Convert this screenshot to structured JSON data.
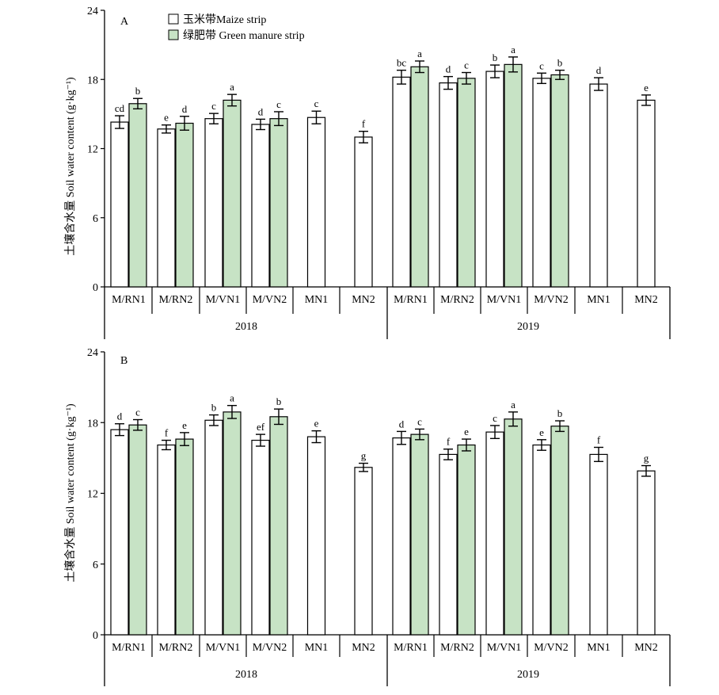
{
  "legend": {
    "maize_label": "玉米带Maize strip",
    "green_label": "绿肥带 Green manure strip"
  },
  "colors": {
    "maize_fill": "#ffffff",
    "green_fill": "#c7e3c5",
    "stroke": "#000000"
  },
  "ylabel": "土壤含水量 Soil water content (g·kg⁻¹)",
  "chart_data": [
    {
      "type": "bar",
      "panel_label": "A",
      "ylim": [
        0,
        24
      ],
      "yticks": [
        0,
        6,
        12,
        18,
        24
      ],
      "years": [
        "2018",
        "2019"
      ],
      "categories": [
        "M/RN1",
        "M/RN2",
        "M/VN1",
        "M/VN2",
        "MN1",
        "MN2"
      ],
      "series": [
        {
          "name": "玉米带Maize strip",
          "values": {
            "2018": [
              14.3,
              13.7,
              14.6,
              14.1,
              14.7,
              13.0
            ],
            "2019": [
              18.2,
              17.7,
              18.7,
              18.1,
              17.6,
              16.2
            ]
          },
          "errors": {
            "2018": [
              0.55,
              0.35,
              0.45,
              0.45,
              0.55,
              0.5
            ],
            "2019": [
              0.6,
              0.55,
              0.55,
              0.45,
              0.55,
              0.45
            ]
          },
          "letters": {
            "2018": [
              "cd",
              "e",
              "c",
              "d",
              "c",
              "f"
            ],
            "2019": [
              "bc",
              "d",
              "b",
              "c",
              "d",
              "e"
            ]
          }
        },
        {
          "name": "绿肥带 Green manure strip",
          "values": {
            "2018": [
              15.9,
              14.2,
              16.2,
              14.6,
              null,
              null
            ],
            "2019": [
              19.1,
              18.1,
              19.3,
              18.4,
              null,
              null
            ]
          },
          "errors": {
            "2018": [
              0.45,
              0.6,
              0.5,
              0.6,
              null,
              null
            ],
            "2019": [
              0.5,
              0.5,
              0.65,
              0.4,
              null,
              null
            ]
          },
          "letters": {
            "2018": [
              "b",
              "d",
              "a",
              "c",
              null,
              null
            ],
            "2019": [
              "a",
              "c",
              "a",
              "b",
              null,
              null
            ]
          }
        }
      ]
    },
    {
      "type": "bar",
      "panel_label": "B",
      "ylim": [
        0,
        24
      ],
      "yticks": [
        0,
        6,
        12,
        18,
        24
      ],
      "years": [
        "2018",
        "2019"
      ],
      "categories": [
        "M/RN1",
        "M/RN2",
        "M/VN1",
        "M/VN2",
        "MN1",
        "MN2"
      ],
      "series": [
        {
          "name": "玉米带Maize strip",
          "values": {
            "2018": [
              17.4,
              16.1,
              18.2,
              16.5,
              16.8,
              14.2
            ],
            "2019": [
              16.7,
              15.3,
              17.2,
              16.1,
              15.3,
              13.9
            ]
          },
          "errors": {
            "2018": [
              0.5,
              0.4,
              0.45,
              0.5,
              0.5,
              0.35
            ],
            "2019": [
              0.55,
              0.45,
              0.55,
              0.45,
              0.6,
              0.45
            ]
          },
          "letters": {
            "2018": [
              "d",
              "f",
              "b",
              "ef",
              "e",
              "g"
            ],
            "2019": [
              "d",
              "f",
              "c",
              "e",
              "f",
              "g"
            ]
          }
        },
        {
          "name": "绿肥带 Green manure strip",
          "values": {
            "2018": [
              17.8,
              16.6,
              18.9,
              18.5,
              null,
              null
            ],
            "2019": [
              17.0,
              16.1,
              18.3,
              17.7,
              null,
              null
            ]
          },
          "errors": {
            "2018": [
              0.45,
              0.55,
              0.55,
              0.65,
              null,
              null
            ],
            "2019": [
              0.45,
              0.5,
              0.6,
              0.45,
              null,
              null
            ]
          },
          "letters": {
            "2018": [
              "c",
              "e",
              "a",
              "b",
              null,
              null
            ],
            "2019": [
              "c",
              "e",
              "a",
              "b",
              null,
              null
            ]
          }
        }
      ]
    }
  ]
}
